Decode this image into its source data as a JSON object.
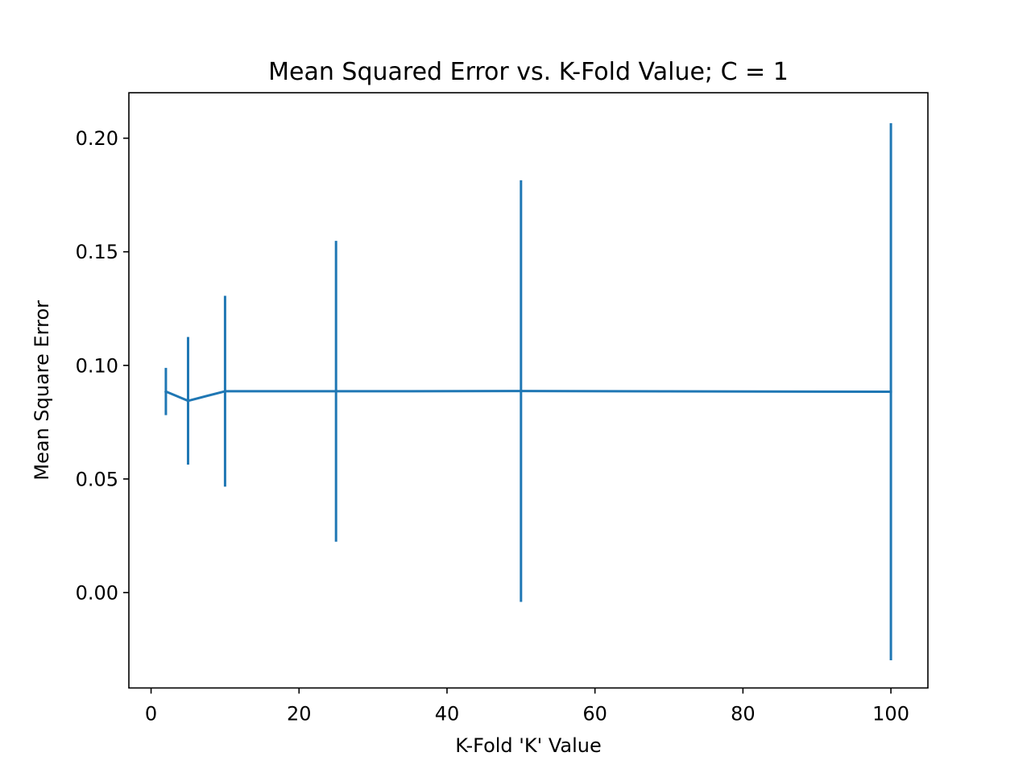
{
  "chart_data": {
    "type": "line",
    "title": "Mean Squared Error vs. K-Fold Value; C = 1",
    "xlabel": "K-Fold 'K' Value",
    "ylabel": "Mean Square Error",
    "xlim": [
      -3,
      105
    ],
    "ylim": [
      -0.042,
      0.22
    ],
    "xticks": [
      0,
      20,
      40,
      60,
      80,
      100
    ],
    "xtick_labels": [
      "0",
      "20",
      "40",
      "60",
      "80",
      "100"
    ],
    "yticks": [
      0.0,
      0.05,
      0.1,
      0.15,
      0.2
    ],
    "ytick_labels": [
      "0.00",
      "0.05",
      "0.10",
      "0.15",
      "0.20"
    ],
    "grid": false,
    "legend": false,
    "series": [
      {
        "color": "#1f77b4",
        "x": [
          2,
          5,
          10,
          25,
          50,
          100
        ],
        "y": [
          0.0885,
          0.0844,
          0.0886,
          0.0886,
          0.0887,
          0.0884
        ],
        "yerr_low": [
          0.0781,
          0.0563,
          0.0466,
          0.0224,
          -0.0041,
          -0.0298
        ],
        "yerr_high": [
          0.0989,
          0.1125,
          0.1306,
          0.1548,
          0.1815,
          0.2066
        ]
      }
    ]
  }
}
